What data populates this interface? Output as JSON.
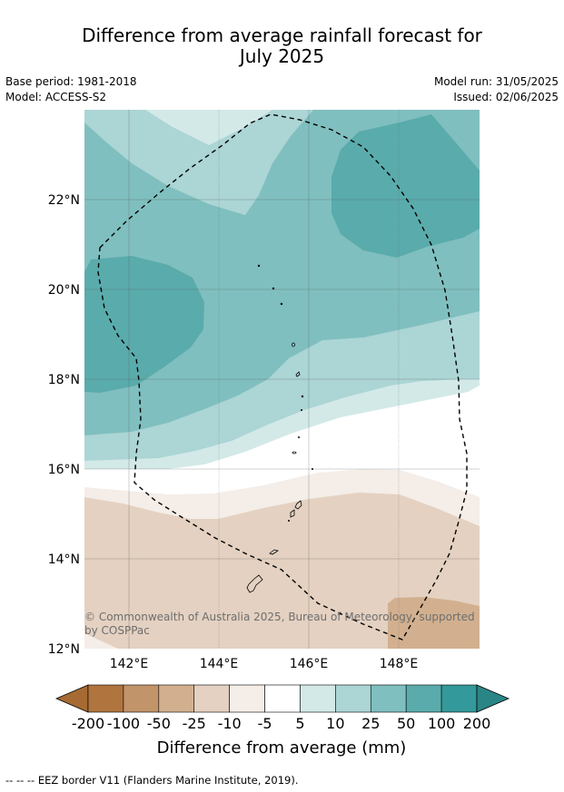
{
  "title": {
    "line1": "Difference from average rainfall forecast for",
    "line2": "July 2025"
  },
  "meta": {
    "base_period": "Base period: 1981-2018",
    "model": "Model: ACCESS-S2",
    "model_run": "Model run: 31/05/2025",
    "issued": "Issued: 02/06/2025"
  },
  "map": {
    "lat_labels": [
      "22°N",
      "20°N",
      "18°N",
      "16°N",
      "14°N",
      "12°N"
    ],
    "lon_labels": [
      "142°E",
      "144°E",
      "146°E",
      "148°E"
    ],
    "copyright_line1": "© Commonwealth of Australia 2025, Bureau of Meteorology, supported",
    "copyright_line2": "by COSPPac",
    "eez_outline": "dashed"
  },
  "legend": {
    "title": "Difference from average (mm)",
    "labels": [
      "-200",
      "-100",
      "-50",
      "-25",
      "-10",
      "-5",
      "5",
      "10",
      "25",
      "50",
      "100",
      "200"
    ],
    "colors": [
      "#a66a32",
      "#b0743e",
      "#c2946a",
      "#d2b08f",
      "#e4d1c1",
      "#f4ede8",
      "#ffffff",
      "#d3e9e8",
      "#acd5d5",
      "#80bfbf",
      "#5aabac",
      "#34999a",
      "#2a8586"
    ],
    "extend": "both"
  },
  "colors": {
    "dry_strong": "#d2b08f",
    "dry_moderate": "#e4d1c1",
    "dry_slight": "#f4ede8",
    "neutral": "#ffffff",
    "wet_slight": "#d3e9e8",
    "wet_light": "#acd5d5",
    "wet_moderate": "#80bfbf",
    "wet_strong": "#5aabac"
  },
  "footnote": "--  --  -- EEZ border V11 (Flanders Marine Institute, 2019)."
}
